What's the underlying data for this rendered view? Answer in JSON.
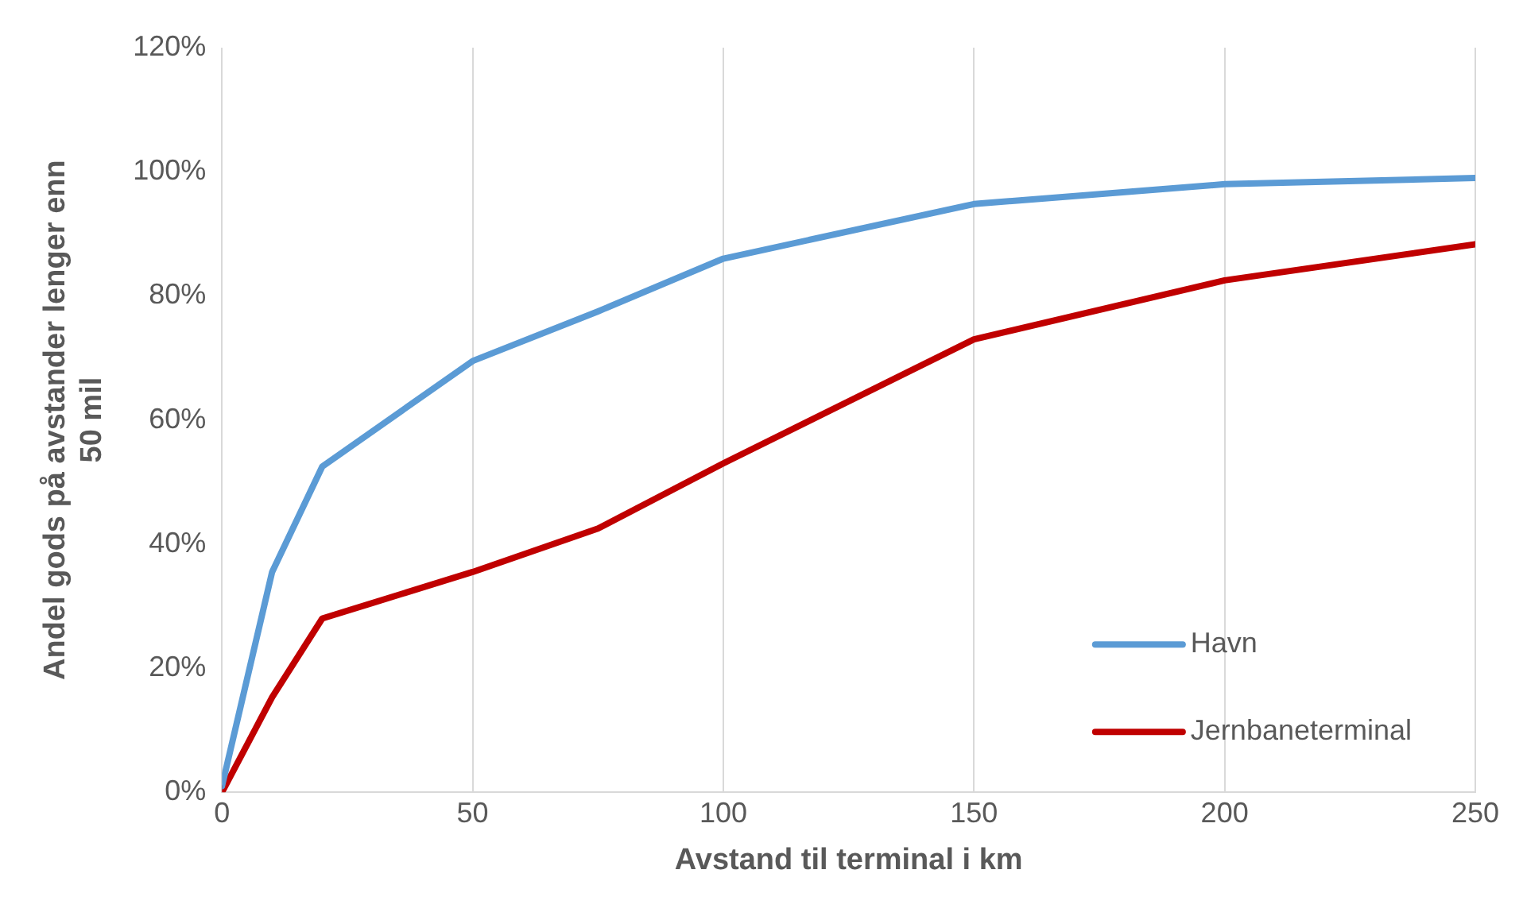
{
  "chart_data": {
    "type": "line",
    "xlabel": "Avstand til terminal i km",
    "ylabel": "Andel gods på avstander lenger enn 50 mil",
    "x": [
      0,
      10,
      20,
      50,
      75,
      100,
      150,
      200,
      250
    ],
    "series": [
      {
        "name": "Havn",
        "color": "#5b9bd5",
        "values": [
          1,
          35.5,
          52.5,
          69.5,
          77.5,
          86,
          94.8,
          98,
          99
        ]
      },
      {
        "name": "Jernbaneterminal",
        "color": "#c00000",
        "values": [
          0,
          15.3,
          28,
          35.5,
          42.5,
          53,
          73,
          82.5,
          88.3
        ]
      }
    ],
    "xlim": [
      0,
      250
    ],
    "xticks": [
      0,
      50,
      100,
      150,
      200,
      250
    ],
    "ylim": [
      0,
      120
    ],
    "yticks": [
      {
        "value": 0,
        "label": "0%"
      },
      {
        "value": 20,
        "label": "20%"
      },
      {
        "value": 40,
        "label": "40%"
      },
      {
        "value": 60,
        "label": "60%"
      },
      {
        "value": 80,
        "label": "80%"
      },
      {
        "value": 100,
        "label": "100%"
      },
      {
        "value": 120,
        "label": "120%"
      }
    ],
    "grid": "x",
    "legend": "bottom right",
    "marker": "none",
    "line_style": "solid"
  }
}
